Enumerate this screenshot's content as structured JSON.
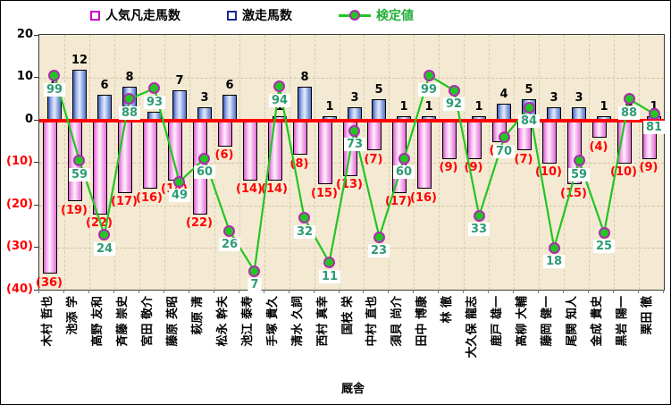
{
  "chart_data": {
    "type": "combo-bar-line",
    "xlabel": "厩舎",
    "legend": [
      {
        "label": "人気凡走馬数",
        "marker": "square",
        "color": "#cc00cc"
      },
      {
        "label": "激走馬数",
        "marker": "square",
        "color": "#1a2a8c"
      },
      {
        "label": "検定値",
        "marker": "line-dot",
        "color": "#22c522"
      }
    ],
    "y_axis": {
      "min": -40,
      "max": 20,
      "ticks": [
        {
          "value": 20,
          "label": "20",
          "color": "#000000"
        },
        {
          "value": 10,
          "label": "10",
          "color": "#000000"
        },
        {
          "value": 0,
          "label": "0",
          "color": "#000000"
        },
        {
          "value": -10,
          "label": "(10)",
          "color": "#ff0000"
        },
        {
          "value": -20,
          "label": "(20)",
          "color": "#ff0000"
        },
        {
          "value": -30,
          "label": "(30)",
          "color": "#ff0000"
        },
        {
          "value": -40,
          "label": "(40)",
          "color": "#ff0000"
        }
      ]
    },
    "categories": [
      "木村 哲也",
      "池添 学",
      "高野 友和",
      "斉藤 崇史",
      "宮田 敬介",
      "藤原 英昭",
      "萩原 清",
      "松永 幹夫",
      "池江 泰寿",
      "手塚 貴久",
      "清水 久詞",
      "西村 真幸",
      "国枝 栄",
      "中村 直也",
      "須貝 尚介",
      "田中 博康",
      "林 徹",
      "大久保 龍志",
      "鹿戸 雄一",
      "高柳 大輔",
      "藤岡 健一",
      "尾関 知人",
      "金成 貴史",
      "黒岩 陽一",
      "栗田 徹"
    ],
    "series": [
      {
        "name": "人気凡走馬数",
        "type": "bar",
        "direction": "down",
        "values": [
          36,
          19,
          22,
          17,
          16,
          14,
          22,
          6,
          14,
          14,
          8,
          15,
          13,
          7,
          17,
          16,
          9,
          9,
          5,
          7,
          10,
          15,
          4,
          10,
          9
        ],
        "labels": [
          "(36)",
          "(19)",
          "(22)",
          "(17)",
          "(16)",
          "(14)",
          "(22)",
          "(6)",
          "(14)",
          "(14)",
          "(8)",
          "(15)",
          "(13)",
          "(7)",
          "(17)",
          "(16)",
          "(9)",
          "(9)",
          "(5)",
          "(7)",
          "(10)",
          "(15)",
          "(4)",
          "(10)",
          "(9)"
        ]
      },
      {
        "name": "激走馬数",
        "type": "bar",
        "direction": "up",
        "values": [
          6,
          12,
          6,
          8,
          2,
          7,
          3,
          6,
          0,
          1,
          8,
          1,
          3,
          5,
          1,
          1,
          0,
          1,
          4,
          5,
          3,
          3,
          1,
          2,
          1
        ],
        "labels": [
          "6",
          "12",
          "6",
          "8",
          "2",
          "7",
          "3",
          "6",
          "",
          "1",
          "8",
          "1",
          "3",
          "5",
          "1",
          "1",
          "",
          "1",
          "4",
          "5",
          "3",
          "3",
          "1",
          "2",
          "1"
        ]
      },
      {
        "name": "検定値",
        "type": "line",
        "values": [
          99,
          59,
          24,
          88,
          93,
          49,
          60,
          26,
          7,
          94,
          32,
          11,
          73,
          23,
          60,
          99,
          92,
          33,
          70,
          84,
          18,
          59,
          25,
          88,
          81
        ]
      }
    ],
    "kentei_plot_transform": {
      "offset": 78,
      "divisor": 2
    },
    "colors": {
      "plot_bg": "#f4ead3",
      "zero_line": "#ff0000",
      "ninki_bar": "#e070d8",
      "gekiso_bar": "#5272cc",
      "kentei_line": "#22c522",
      "marker_ring": "#b02ab0",
      "negative_label": "#ff0000",
      "positive_label": "#000000",
      "kentei_label": "#2d9b72"
    }
  }
}
